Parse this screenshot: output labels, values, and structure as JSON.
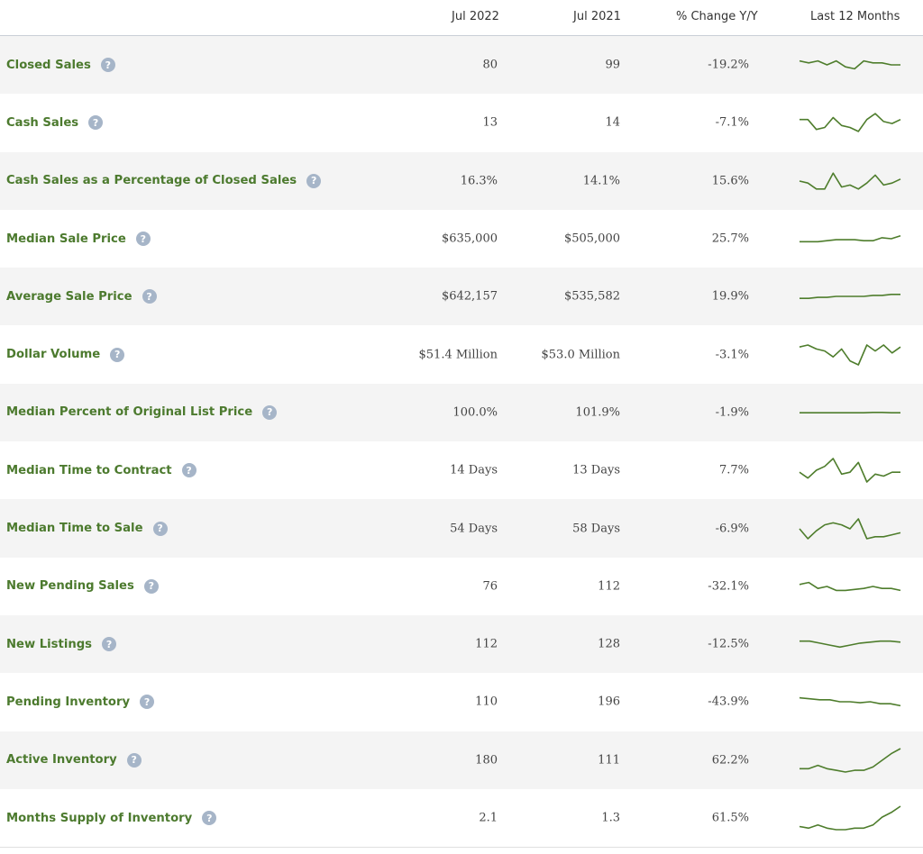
{
  "header": {
    "col1": "Jul 2022",
    "col2": "Jul 2021",
    "col3": "% Change Y/Y",
    "col4": "Last 12 Months"
  },
  "help_glyph": "?",
  "rows": [
    {
      "label": "Closed Sales",
      "jul2022": "80",
      "jul2021": "99",
      "change": "-19.2%",
      "trend": [
        3,
        4,
        3,
        5,
        3,
        6,
        7,
        3,
        4,
        4,
        5,
        5
      ]
    },
    {
      "label": "Cash Sales",
      "jul2022": "13",
      "jul2021": "14",
      "change": "-7.1%",
      "trend": [
        6,
        6,
        11,
        10,
        5,
        9,
        10,
        12,
        6,
        3,
        7,
        8,
        6
      ]
    },
    {
      "label": "Cash Sales as a Percentage of Closed Sales",
      "jul2022": "16.3%",
      "jul2021": "14.1%",
      "change": "15.6%",
      "trend": [
        8,
        9,
        12,
        12,
        4,
        11,
        10,
        12,
        9,
        5,
        10,
        9,
        7
      ]
    },
    {
      "label": "Median Sale Price",
      "jul2022": "$635,000",
      "jul2021": "$505,000",
      "change": "25.7%",
      "trend": [
        7,
        7,
        7,
        6.5,
        6,
        6,
        6,
        6.5,
        6.5,
        5,
        5.5,
        4
      ]
    },
    {
      "label": "Average Sale Price",
      "jul2022": "$642,157",
      "jul2021": "$535,582",
      "change": "19.9%",
      "trend": [
        6,
        6,
        5.5,
        5.5,
        5,
        5,
        5,
        5,
        4.5,
        4.5,
        4,
        4
      ]
    },
    {
      "label": "Dollar Volume",
      "jul2022": "$51.4 Million",
      "jul2021": "$53.0 Million",
      "change": "-3.1%",
      "trend": [
        4,
        3,
        5,
        6,
        9,
        5,
        11,
        13,
        3,
        6,
        3,
        7,
        4
      ]
    },
    {
      "label": "Median Percent of Original List Price",
      "jul2022": "100.0%",
      "jul2021": "101.9%",
      "change": "-1.9%",
      "trend": [
        6,
        6,
        6,
        6,
        6,
        6,
        6,
        6,
        5.8,
        5.8,
        6,
        6
      ]
    },
    {
      "label": "Median Time to Contract",
      "jul2022": "14 Days",
      "jul2021": "13 Days",
      "change": "7.7%",
      "trend": [
        7,
        10,
        6,
        4,
        0,
        8,
        7,
        2,
        12,
        8,
        9,
        7,
        7
      ]
    },
    {
      "label": "Median Time to Sale",
      "jul2022": "54 Days",
      "jul2021": "58 Days",
      "change": "-6.9%",
      "trend": [
        5,
        10,
        6,
        3,
        2,
        3,
        5,
        0,
        10,
        9,
        9,
        8,
        7
      ]
    },
    {
      "label": "New Pending Sales",
      "jul2022": "76",
      "jul2021": "112",
      "change": "-32.1%",
      "trend": [
        4,
        3,
        6,
        5,
        7,
        7,
        6.5,
        6,
        5,
        6,
        6,
        7
      ]
    },
    {
      "label": "New Listings",
      "jul2022": "112",
      "jul2021": "128",
      "change": "-12.5%",
      "trend": [
        4,
        4,
        5,
        6,
        7,
        6,
        5,
        4.5,
        4,
        4,
        4.5
      ]
    },
    {
      "label": "Pending Inventory",
      "jul2022": "110",
      "jul2021": "196",
      "change": "-43.9%",
      "trend": [
        4,
        4.5,
        5,
        5,
        6,
        6,
        6.5,
        6,
        7,
        7,
        8
      ]
    },
    {
      "label": "Active Inventory",
      "jul2022": "180",
      "jul2021": "111",
      "change": "62.2%",
      "trend": [
        18,
        18,
        16,
        18,
        19,
        20,
        19,
        19,
        17,
        13,
        9,
        6
      ]
    },
    {
      "label": "Months Supply of Inventory",
      "jul2022": "2.1",
      "jul2021": "1.3",
      "change": "61.5%",
      "trend": [
        18,
        19,
        17,
        19,
        20,
        20,
        19,
        19,
        17,
        12,
        9,
        5
      ]
    }
  ]
}
